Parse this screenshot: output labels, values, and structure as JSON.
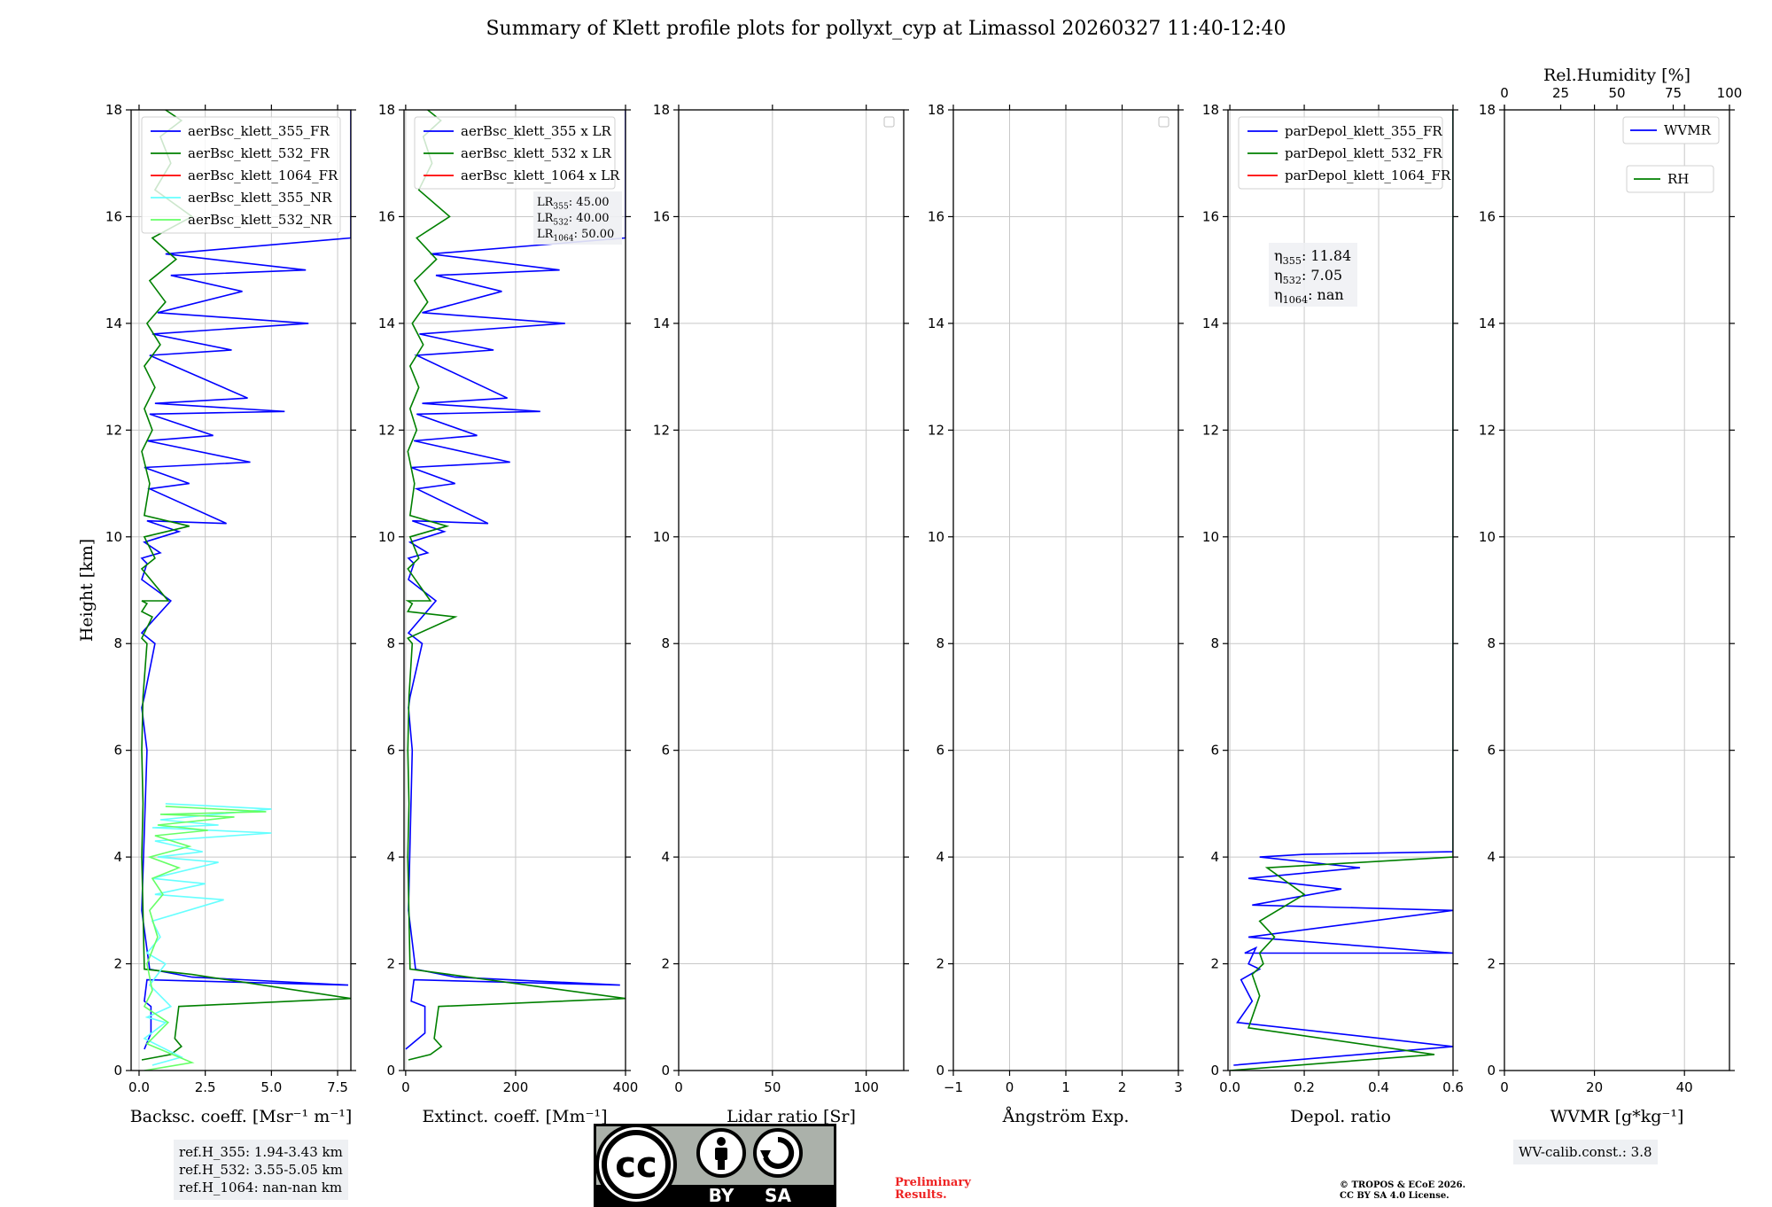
{
  "title": "Summary of Klett profile plots for pollyxt_cyp at Limassol 20260327 11:40-12:40",
  "y_axis_label": "Height [km]",
  "chart_data": [
    {
      "type": "line",
      "id": "backscatter",
      "xlabel": "Backsc. coeff. [Msr⁻¹ m⁻¹]",
      "xlim": [
        -0.3,
        8.0
      ],
      "ylim": [
        0,
        18
      ],
      "xticks": [
        0.0,
        2.5,
        5.0,
        7.5
      ],
      "xtick_labels": [
        "0.0",
        "2.5",
        "5.0",
        "7.5"
      ],
      "yticks": [
        0,
        2,
        4,
        6,
        8,
        10,
        12,
        14,
        16,
        18
      ],
      "grid": true,
      "legend": "top",
      "series": [
        {
          "name": "aerBsc_klett_355_FR",
          "color": "#0000ff",
          "x": [
            0.2,
            0.45,
            0.45,
            0.2,
            0.3,
            7.9,
            2.0,
            0.4,
            0.1,
            0.3,
            0.1,
            0.2,
            0.6,
            0.1,
            1.2,
            0.1,
            0.3,
            0.1,
            0.8,
            0.2,
            1.5,
            0.3,
            3.3,
            0.4,
            1.9,
            0.2,
            4.2,
            0.3,
            2.8,
            0.4,
            5.5,
            0.6,
            4.1,
            0.4,
            3.5,
            0.5,
            6.4,
            0.7,
            3.9,
            1.2,
            6.3,
            1.0,
            8.0,
            8.0
          ],
          "y": [
            0.4,
            0.7,
            1.2,
            1.3,
            1.7,
            1.6,
            1.75,
            1.9,
            3,
            6.0,
            6.8,
            7.0,
            8.0,
            8.2,
            8.8,
            9.2,
            9.5,
            9.6,
            9.7,
            9.9,
            10.1,
            10.3,
            10.25,
            10.9,
            11.0,
            11.3,
            11.4,
            11.8,
            11.9,
            12.3,
            12.35,
            12.5,
            12.6,
            13.4,
            13.5,
            13.8,
            14.0,
            14.2,
            14.6,
            14.9,
            15.0,
            15.3,
            15.6,
            18.0
          ]
        },
        {
          "name": "aerBsc_klett_532_FR",
          "color": "#008000",
          "x": [
            0.1,
            1.2,
            1.6,
            1.35,
            1.5,
            8.0,
            2.0,
            0.2,
            0.1,
            0.15,
            0.1,
            0.15,
            0.3,
            0.1,
            0.5,
            0.1,
            0.3,
            0.1,
            1.1,
            0.1,
            0.6,
            0.2,
            1.9,
            0.2,
            0.4,
            0.1,
            0.5,
            0.2,
            0.6,
            0.2,
            0.8,
            0.3,
            1.0,
            0.4,
            1.4,
            0.5,
            2.0,
            0.6,
            1.2,
            0.8,
            1.6,
            1.0
          ],
          "y": [
            0.2,
            0.3,
            0.45,
            0.6,
            1.2,
            1.35,
            1.8,
            1.9,
            4,
            5.0,
            6.0,
            7.0,
            8.0,
            8.1,
            8.5,
            8.6,
            8.75,
            8.8,
            8.8,
            9.4,
            9.6,
            10.0,
            10.2,
            10.4,
            11.0,
            11.6,
            12.0,
            12.4,
            12.8,
            13.2,
            13.6,
            14.0,
            14.4,
            14.8,
            15.2,
            15.6,
            16.0,
            16.5,
            17.0,
            17.5,
            17.8,
            18.0
          ]
        },
        {
          "name": "aerBsc_klett_1064_FR",
          "color": "#ff0000",
          "x": [],
          "y": []
        },
        {
          "name": "aerBsc_klett_355_NR",
          "color": "#66ffff",
          "x": [
            0.5,
            1.6,
            0.2,
            1.0,
            0.3,
            1.2,
            0.4,
            1.0,
            0.3,
            0.8,
            0.5,
            3.2,
            0.6,
            2.5,
            0.5,
            3.0,
            0.7,
            2.4,
            0.6,
            5.0,
            0.5,
            3.0,
            0.8,
            5.0,
            1.0
          ],
          "y": [
            0.1,
            0.25,
            0.6,
            0.9,
            1.0,
            1.2,
            1.6,
            2.0,
            2.2,
            2.5,
            2.8,
            3.2,
            3.3,
            3.5,
            3.6,
            3.9,
            4.0,
            4.1,
            4.3,
            4.45,
            4.55,
            4.6,
            4.7,
            4.9,
            5.0
          ]
        },
        {
          "name": "aerBsc_klett_532_NR",
          "color": "#66ff66",
          "x": [
            0.2,
            2.0,
            0.3,
            1.1,
            0.2,
            0.5,
            0.3,
            0.7,
            0.4,
            0.9,
            0.5,
            1.5,
            0.4,
            1.9,
            0.6,
            2.6,
            0.7,
            3.6,
            0.8,
            4.8,
            1.0
          ],
          "y": [
            0.0,
            0.15,
            0.5,
            0.9,
            1.2,
            1.5,
            2.0,
            2.5,
            3.0,
            3.3,
            3.6,
            3.8,
            4.0,
            4.2,
            4.4,
            4.5,
            4.6,
            4.75,
            4.8,
            4.85,
            4.95
          ]
        }
      ],
      "refs": [
        "ref.H_355: 1.94-3.43 km",
        "ref.H_532: 3.55-5.05 km",
        "ref.H_1064: nan-nan km"
      ]
    },
    {
      "type": "line",
      "id": "extinction",
      "xlabel": "Extinct. coeff. [Mm⁻¹]",
      "xlim": [
        -3,
        400
      ],
      "ylim": [
        0,
        18
      ],
      "xticks": [
        0,
        200,
        400
      ],
      "xtick_labels": [
        "0",
        "200",
        "400"
      ],
      "yticks": [
        0,
        2,
        4,
        6,
        8,
        10,
        12,
        14,
        16,
        18
      ],
      "grid": true,
      "legend": "top",
      "series": [
        {
          "name": "aerBsc_klett_355 x LR",
          "color": "#0000ff",
          "x": [
            0,
            35,
            35,
            10,
            15,
            390,
            90,
            18,
            5,
            12,
            5,
            8,
            30,
            5,
            55,
            5,
            15,
            5,
            40,
            8,
            70,
            12,
            150,
            20,
            90,
            10,
            190,
            15,
            130,
            20,
            245,
            30,
            185,
            20,
            160,
            25,
            290,
            30,
            175,
            55,
            280,
            45,
            400,
            400
          ],
          "y": [
            0.4,
            0.7,
            1.2,
            1.3,
            1.7,
            1.6,
            1.75,
            1.9,
            3,
            6.0,
            6.8,
            7.0,
            8.0,
            8.2,
            8.8,
            9.2,
            9.5,
            9.6,
            9.7,
            9.9,
            10.1,
            10.3,
            10.25,
            10.9,
            11.0,
            11.3,
            11.4,
            11.8,
            11.9,
            12.3,
            12.35,
            12.5,
            12.6,
            13.4,
            13.5,
            13.8,
            14.0,
            14.2,
            14.6,
            14.9,
            15.0,
            15.3,
            15.6,
            18.0
          ]
        },
        {
          "name": "aerBsc_klett_532 x LR",
          "color": "#008000",
          "x": [
            5,
            45,
            65,
            52,
            60,
            400,
            80,
            8,
            4,
            6,
            4,
            6,
            12,
            4,
            90,
            4,
            12,
            4,
            45,
            4,
            24,
            8,
            75,
            8,
            16,
            4,
            20,
            8,
            24,
            8,
            32,
            12,
            40,
            16,
            56,
            20,
            80,
            24,
            48,
            32,
            64,
            40
          ],
          "y": [
            0.2,
            0.3,
            0.45,
            0.6,
            1.2,
            1.35,
            1.8,
            1.9,
            4,
            5.0,
            6.0,
            7.0,
            8.0,
            8.1,
            8.5,
            8.6,
            8.75,
            8.8,
            8.8,
            9.4,
            9.6,
            10.0,
            10.2,
            10.4,
            11.0,
            11.6,
            12.0,
            12.4,
            12.8,
            13.2,
            13.6,
            14.0,
            14.4,
            14.8,
            15.2,
            15.6,
            16.0,
            16.5,
            17.0,
            17.5,
            17.8,
            18.0
          ]
        },
        {
          "name": "aerBsc_klett_1064 x LR",
          "color": "#ff0000",
          "x": [],
          "y": []
        }
      ],
      "lr_annotations": [
        "LR355: 45.00",
        "LR532: 40.00",
        "LR1064: 50.00"
      ]
    },
    {
      "type": "line",
      "id": "lidar_ratio",
      "xlabel": "Lidar ratio [Sr]",
      "xlim": [
        0,
        120
      ],
      "ylim": [
        0,
        18
      ],
      "xticks": [
        0,
        50,
        100
      ],
      "xtick_labels": [
        "0",
        "50",
        "100"
      ],
      "yticks": [
        0,
        2,
        4,
        6,
        8,
        10,
        12,
        14,
        16,
        18
      ],
      "grid": true,
      "legend": "top-right",
      "series": []
    },
    {
      "type": "line",
      "id": "angstrom",
      "xlabel": "Ångström Exp.",
      "xlim": [
        -1,
        3
      ],
      "ylim": [
        0,
        18
      ],
      "xticks": [
        -1,
        0,
        1,
        2,
        3
      ],
      "xtick_labels": [
        "−1",
        "0",
        "1",
        "2",
        "3"
      ],
      "yticks": [
        0,
        2,
        4,
        6,
        8,
        10,
        12,
        14,
        16,
        18
      ],
      "grid": true,
      "legend": "top-right",
      "series": []
    },
    {
      "type": "line",
      "id": "depol",
      "xlabel": "Depol. ratio",
      "xlim": [
        -0.005,
        0.6
      ],
      "ylim": [
        0,
        18
      ],
      "xticks": [
        0.0,
        0.2,
        0.4,
        0.6
      ],
      "xtick_labels": [
        "0.0",
        "0.2",
        "0.4",
        "0.6"
      ],
      "yticks": [
        0,
        2,
        4,
        6,
        8,
        10,
        12,
        14,
        16,
        18
      ],
      "grid": true,
      "legend": "top",
      "series": [
        {
          "name": "parDepol_klett_355_FR",
          "color": "#0000ff",
          "x": [
            0.01,
            0.6,
            0.02,
            0.06,
            0.03,
            0.08,
            0.05,
            0.07,
            0.04,
            0.6,
            0.05,
            0.6,
            0.06,
            0.3,
            0.05,
            0.35,
            0.08,
            0.2,
            0.6,
            0.6
          ],
          "y": [
            0.1,
            0.45,
            0.9,
            1.3,
            1.7,
            1.9,
            2.0,
            2.3,
            2.2,
            2.2,
            2.5,
            3.0,
            3.1,
            3.4,
            3.6,
            3.8,
            4.0,
            4.05,
            4.1,
            18.0
          ]
        },
        {
          "name": "parDepol_klett_532_FR",
          "color": "#008000",
          "x": [
            0.0,
            0.55,
            0.05,
            0.08,
            0.06,
            0.09,
            0.08,
            0.12,
            0.08,
            0.2,
            0.1,
            0.6,
            0.6
          ],
          "y": [
            0.0,
            0.3,
            0.8,
            1.4,
            1.8,
            2.0,
            2.2,
            2.5,
            2.8,
            3.3,
            3.8,
            4.0,
            18.0
          ]
        },
        {
          "name": "parDepol_klett_1064_FR",
          "color": "#ff0000",
          "x": [],
          "y": []
        }
      ],
      "eta_annotations": [
        "η355: 11.84",
        "η532: 7.05",
        "η1064: nan"
      ]
    },
    {
      "type": "line",
      "id": "wvmr",
      "xlabel": "WVMR [g*kg⁻¹]",
      "xlim": [
        0,
        50
      ],
      "ylim": [
        0,
        18
      ],
      "xticks": [
        0,
        20,
        40
      ],
      "xtick_labels": [
        "0",
        "20",
        "40"
      ],
      "yticks": [
        0,
        2,
        4,
        6,
        8,
        10,
        12,
        14,
        16,
        18
      ],
      "grid": true,
      "secondary_xlabel": "Rel.Humidity [%]",
      "secondary_xlim": [
        0,
        100
      ],
      "secondary_xticks": [
        0,
        25,
        50,
        75,
        100
      ],
      "secondary_xtick_labels": [
        "0",
        "25",
        "50",
        "75",
        "100"
      ],
      "legend": "top-right",
      "series": [
        {
          "name": "WVMR",
          "color": "#0000ff",
          "x": [],
          "y": []
        },
        {
          "name": "RH",
          "color": "#008000",
          "x": [],
          "y": []
        }
      ],
      "calib_text": "WV-calib.const.: 3.8"
    }
  ],
  "footer": {
    "license_badge": "CC BY SA",
    "badge_by": "BY",
    "badge_sa": "SA",
    "preliminary_line1": "Preliminary",
    "preliminary_line2": "Results.",
    "copyright_line1": "© TROPOS & ECoE 2026.",
    "copyright_line2": "CC BY SA 4.0 License."
  }
}
